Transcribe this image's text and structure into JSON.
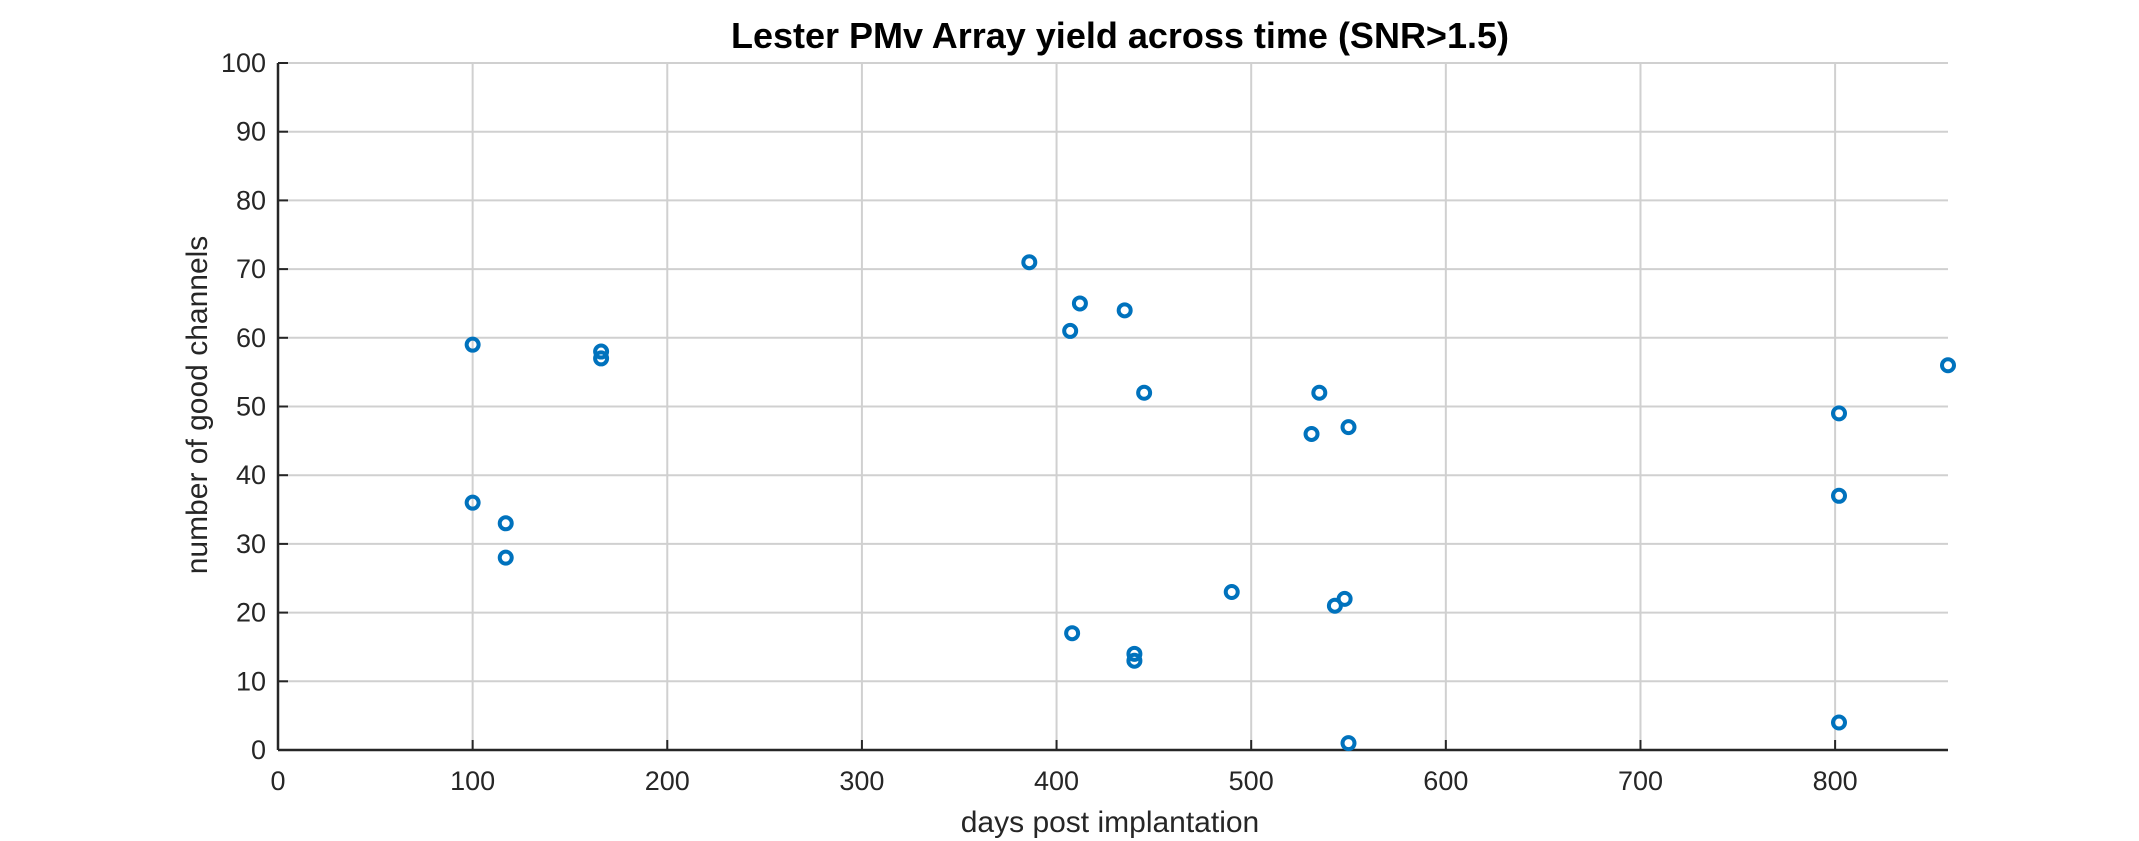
{
  "chart_data": {
    "type": "scatter",
    "title": "Lester PMv Array yield across time (SNR>1.5)",
    "xlabel": "days post implantation",
    "ylabel": "number of good channels",
    "xlim": [
      0,
      858
    ],
    "ylim": [
      0,
      100
    ],
    "xticks": [
      0,
      100,
      200,
      300,
      400,
      500,
      600,
      700,
      800
    ],
    "yticks": [
      0,
      10,
      20,
      30,
      40,
      50,
      60,
      70,
      80,
      90,
      100
    ],
    "grid": true,
    "marker": "circle-open",
    "color": "#0072BD",
    "x": [
      100,
      100,
      117,
      117,
      166,
      166,
      386,
      407,
      408,
      412,
      435,
      440,
      440,
      445,
      490,
      531,
      535,
      543,
      548,
      550,
      550,
      802,
      802,
      802,
      858
    ],
    "y": [
      59,
      36,
      33,
      28,
      57,
      58,
      71,
      61,
      17,
      65,
      64,
      14,
      13,
      52,
      23,
      46,
      52,
      21,
      22,
      47,
      1,
      49,
      37,
      4,
      56
    ]
  }
}
